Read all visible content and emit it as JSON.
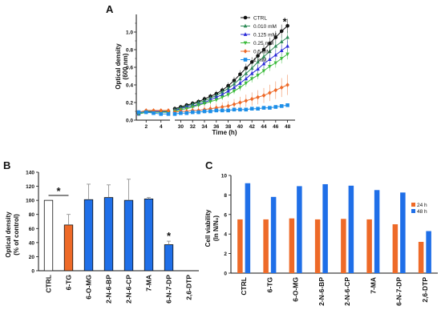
{
  "chart_data": [
    {
      "type": "line",
      "panel": "A",
      "xlabel": "Time (h)",
      "ylabel_lines": [
        "Optical density",
        "(600 nm)"
      ],
      "x_ticks": [
        "2",
        "4",
        "30",
        "32",
        "34",
        "36",
        "38",
        "40",
        "42",
        "44",
        "46",
        "48"
      ],
      "y_ticks": [
        "0.0",
        "0.2",
        "0.4",
        "0.6",
        "0.8",
        "1.0"
      ],
      "ylim": [
        0,
        1.2
      ],
      "segments": [
        [
          1,
          5
        ],
        [
          29,
          49
        ]
      ],
      "x": [
        1,
        2,
        3,
        4,
        5,
        29,
        30,
        31,
        32,
        33,
        34,
        35,
        36,
        37,
        38,
        39,
        40,
        41,
        42,
        43,
        44,
        45,
        46,
        47,
        48
      ],
      "legend_placement": "top-right",
      "series": [
        {
          "name": "CTRL",
          "color": "#111111",
          "marker": "circle",
          "values": [
            0.08,
            0.1,
            0.1,
            0.1,
            0.1,
            0.13,
            0.15,
            0.17,
            0.19,
            0.21,
            0.24,
            0.27,
            0.3,
            0.34,
            0.39,
            0.45,
            0.52,
            0.59,
            0.66,
            0.73,
            0.8,
            0.87,
            0.94,
            1.01,
            1.07
          ]
        },
        {
          "name": "0.010 mM",
          "color": "#2e8b57",
          "marker": "triangle",
          "values": [
            0.08,
            0.1,
            0.1,
            0.1,
            0.1,
            0.12,
            0.14,
            0.16,
            0.18,
            0.2,
            0.22,
            0.25,
            0.28,
            0.32,
            0.36,
            0.41,
            0.47,
            0.53,
            0.59,
            0.66,
            0.72,
            0.78,
            0.84,
            0.89,
            0.94
          ]
        },
        {
          "name": "0.125 mM",
          "color": "#2a2ad8",
          "marker": "triangle",
          "values": [
            0.07,
            0.09,
            0.1,
            0.1,
            0.09,
            0.11,
            0.13,
            0.15,
            0.16,
            0.18,
            0.2,
            0.23,
            0.26,
            0.29,
            0.33,
            0.37,
            0.42,
            0.47,
            0.53,
            0.58,
            0.64,
            0.69,
            0.74,
            0.79,
            0.84
          ]
        },
        {
          "name": "0.25 mM",
          "color": "#3dbb3d",
          "marker": "triangle-down",
          "values": [
            0.07,
            0.09,
            0.09,
            0.09,
            0.09,
            0.1,
            0.12,
            0.13,
            0.15,
            0.17,
            0.19,
            0.21,
            0.23,
            0.26,
            0.29,
            0.33,
            0.37,
            0.42,
            0.47,
            0.51,
            0.56,
            0.61,
            0.65,
            0.7,
            0.75
          ]
        },
        {
          "name": "0.5 mM",
          "color": "#ee6a28",
          "marker": "diamond",
          "values": [
            0.09,
            0.11,
            0.11,
            0.11,
            0.11,
            0.09,
            0.1,
            0.1,
            0.11,
            0.11,
            0.12,
            0.13,
            0.14,
            0.15,
            0.16,
            0.18,
            0.2,
            0.22,
            0.24,
            0.26,
            0.28,
            0.31,
            0.34,
            0.37,
            0.4
          ]
        },
        {
          "name": "1 mM",
          "color": "#1e8fe8",
          "marker": "square",
          "values": [
            0.09,
            0.09,
            0.08,
            0.07,
            0.07,
            0.07,
            0.08,
            0.08,
            0.09,
            0.09,
            0.1,
            0.1,
            0.11,
            0.11,
            0.11,
            0.12,
            0.12,
            0.12,
            0.13,
            0.13,
            0.14,
            0.14,
            0.15,
            0.16,
            0.17
          ]
        }
      ],
      "annotation": "*"
    },
    {
      "type": "bar",
      "panel": "B",
      "ylabel_lines": [
        "Optical density",
        "(% of control)"
      ],
      "y_ticks": [
        "0",
        "20",
        "40",
        "60",
        "80",
        "100",
        "120",
        "140"
      ],
      "ylim": [
        0,
        140
      ],
      "categories": [
        "CTRL",
        "6-TG",
        "6-O-MG",
        "2-N-6-BP",
        "2-N-6-CP",
        "7-MA",
        "6-N-7-DP",
        "2,6-DTP"
      ],
      "values": [
        100,
        65,
        101,
        104,
        100,
        102,
        37,
        0
      ],
      "errors": [
        0,
        15,
        22,
        18,
        30,
        2,
        5,
        0
      ],
      "colors": [
        "#ffffff",
        "#ee6a28",
        "#1f6fe8",
        "#1f6fe8",
        "#1f6fe8",
        "#1f6fe8",
        "#1f6fe8",
        "#1f6fe8"
      ],
      "annotations": [
        "*",
        "*"
      ]
    },
    {
      "type": "bar",
      "panel": "C",
      "ylabel_lines": [
        "Cell viability",
        "(ln N/N₀)"
      ],
      "y_ticks": [
        "0",
        "2",
        "4",
        "6",
        "8",
        "10"
      ],
      "ylim": [
        0,
        10
      ],
      "categories": [
        "CTRL",
        "6-TG",
        "6-O-MG",
        "2-N-6-BP",
        "2-N-6-CP",
        "7-MA",
        "6-N-7-DP",
        "2,6-DTP"
      ],
      "legend_placement": "top-right",
      "series": [
        {
          "name": "24 h",
          "color": "#ee6a28",
          "values": [
            5.5,
            5.5,
            5.6,
            5.5,
            5.55,
            5.5,
            5.0,
            3.2
          ]
        },
        {
          "name": "48 h",
          "color": "#1f6fe8",
          "values": [
            9.2,
            7.8,
            8.9,
            9.1,
            8.95,
            8.5,
            8.25,
            4.3
          ]
        }
      ]
    }
  ]
}
